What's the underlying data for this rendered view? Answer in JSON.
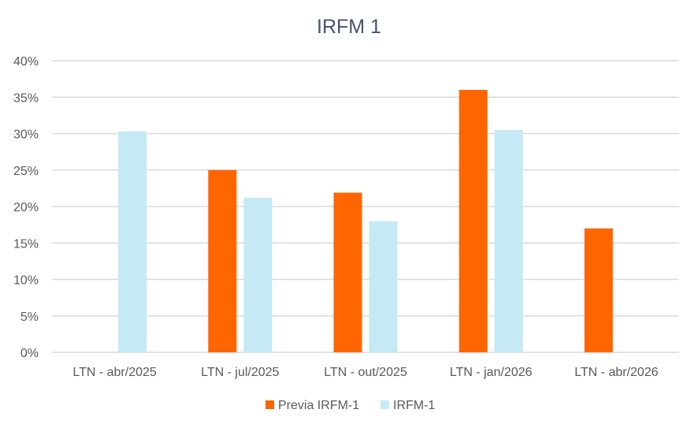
{
  "chart_data": {
    "type": "bar",
    "title": "IRFM 1",
    "xlabel": "",
    "ylabel": "",
    "categories": [
      "LTN - abr/2025",
      "LTN - jul/2025",
      "LTN - out/2025",
      "LTN - jan/2026",
      "LTN - abr/2026"
    ],
    "series": [
      {
        "name": "Previa IRFM-1",
        "color": "#ff6600",
        "values": [
          null,
          25.0,
          21.9,
          36.0,
          17.0
        ]
      },
      {
        "name": "IRFM-1",
        "color": "#c5e9f5",
        "values": [
          30.3,
          21.2,
          18.0,
          30.5,
          null
        ]
      }
    ],
    "ylim": [
      0,
      40
    ],
    "yticks": [
      0,
      5,
      10,
      15,
      20,
      25,
      30,
      35,
      40
    ],
    "ytick_labels": [
      "0%",
      "5%",
      "10%",
      "15%",
      "20%",
      "25%",
      "30%",
      "35%",
      "40%"
    ],
    "grid": true,
    "legend_position": "bottom"
  }
}
